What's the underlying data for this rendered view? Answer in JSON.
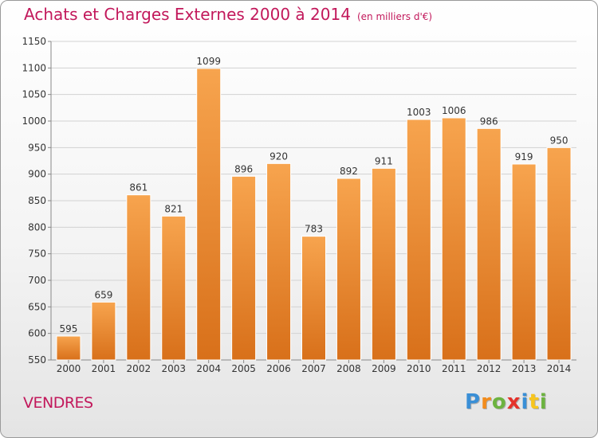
{
  "title": "Achats et Charges Externes 2000 à 2014",
  "unit": "(en milliers d'€)",
  "town": "VENDRES",
  "logo": {
    "letters": [
      "P",
      "r",
      "o",
      "x",
      "i",
      "t",
      "i"
    ],
    "colors": [
      "#3a8fd6",
      "#f28c1c",
      "#6cb33f",
      "#e4322b",
      "#3a8fd6",
      "#f7c51e",
      "#6cb33f"
    ]
  },
  "colors": {
    "bar_top": "#f7a44e",
    "bar_bottom": "#d8701a",
    "text_accent": "#c2185b"
  },
  "chart_data": {
    "type": "bar",
    "categories": [
      "2000",
      "2001",
      "2002",
      "2003",
      "2004",
      "2005",
      "2006",
      "2007",
      "2008",
      "2009",
      "2010",
      "2011",
      "2012",
      "2013",
      "2014"
    ],
    "values": [
      595,
      659,
      861,
      821,
      1099,
      896,
      920,
      783,
      892,
      911,
      1003,
      1006,
      986,
      919,
      950
    ],
    "ylim": [
      550,
      1150
    ],
    "yticks": [
      550,
      600,
      650,
      700,
      750,
      800,
      850,
      900,
      950,
      1000,
      1050,
      1100,
      1150
    ],
    "grid": true,
    "legend": "none"
  }
}
